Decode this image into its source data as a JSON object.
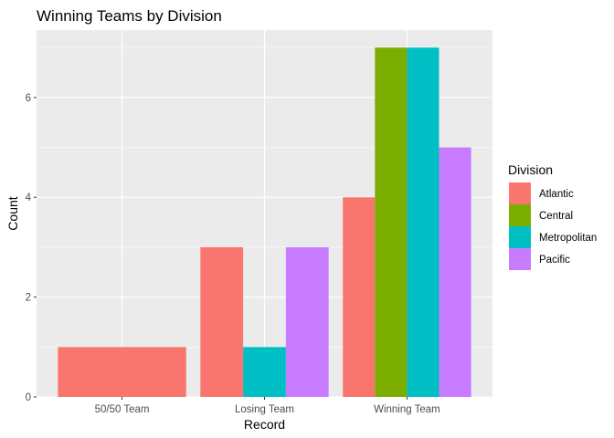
{
  "chart_data": {
    "type": "bar",
    "title": "Winning Teams by Division",
    "xlabel": "Record",
    "ylabel": "Count",
    "categories": [
      "50/50 Team",
      "Losing Team",
      "Winning Team"
    ],
    "ylim": [
      0,
      7.35
    ],
    "yticks": [
      0,
      2,
      4,
      6
    ],
    "grid": true,
    "legend": {
      "title": "Division",
      "position": "right"
    },
    "series": [
      {
        "name": "Atlantic",
        "color": "#F8766D",
        "values": [
          1,
          3,
          4
        ]
      },
      {
        "name": "Central",
        "color": "#7CAE00",
        "values": [
          null,
          null,
          7
        ]
      },
      {
        "name": "Metropolitan",
        "color": "#00BFC4",
        "values": [
          null,
          1,
          7
        ]
      },
      {
        "name": "Pacific",
        "color": "#C77CFF",
        "values": [
          null,
          3,
          5
        ]
      }
    ]
  }
}
